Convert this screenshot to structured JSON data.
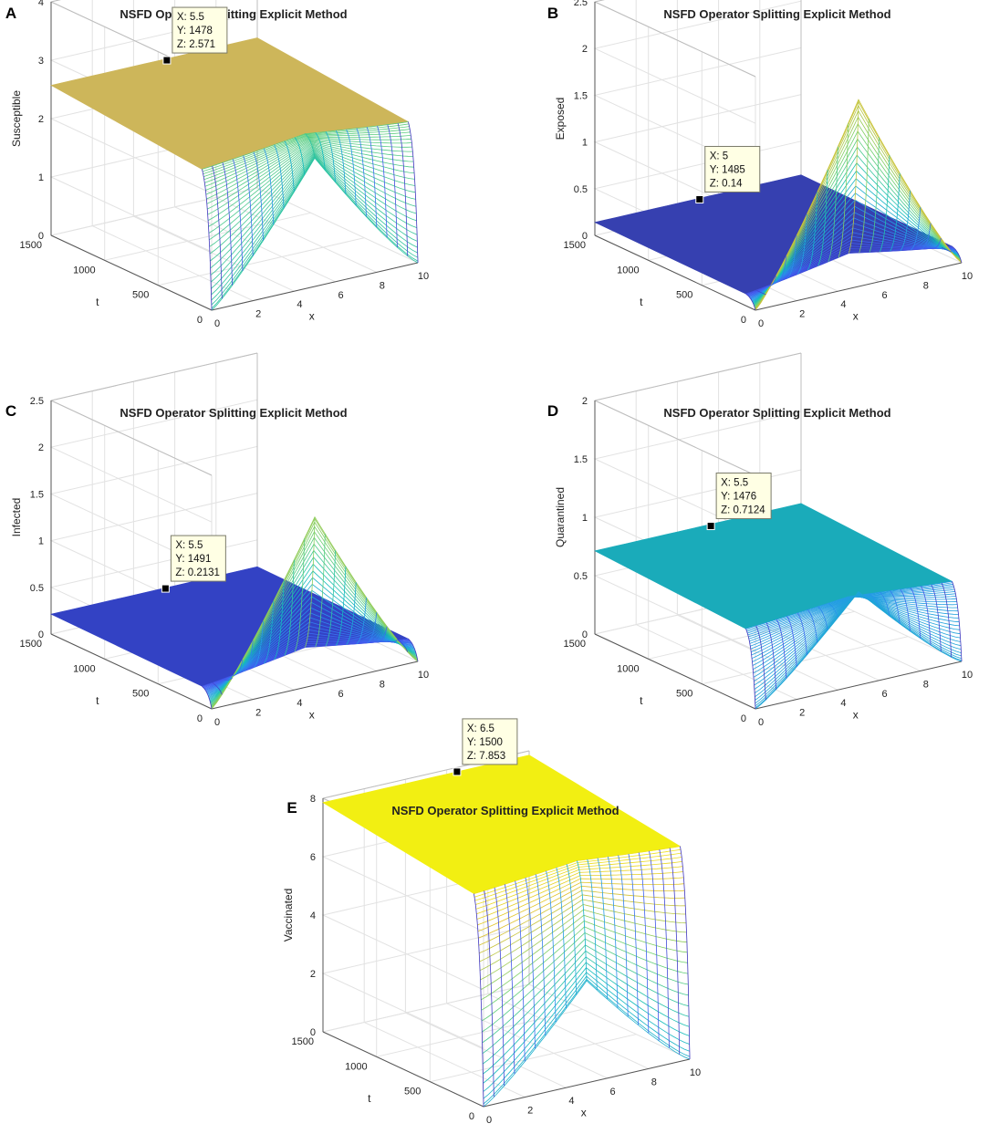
{
  "figure_title": "NSFD Operator Splitting Explicit Method",
  "chart_data": [
    {
      "panel": "A",
      "type": "surface",
      "title": "NSFD Operator Splitting Explicit Method",
      "xlabel": "x",
      "ylabel": "t",
      "zlabel": "Susceptible",
      "xlim": [
        0,
        10
      ],
      "ylim": [
        0,
        1500
      ],
      "zlim": [
        0,
        4
      ],
      "x_ticks": [
        "0",
        "2",
        "4",
        "6",
        "8",
        "10"
      ],
      "y_ticks": [
        "0",
        "500",
        "1000",
        "1500"
      ],
      "z_ticks": [
        "0",
        "1",
        "2",
        "3",
        "4"
      ],
      "surface_color": "#cdb65a",
      "profile": {
        "plateau": 2.571,
        "t0_center": 2.2,
        "t0_edge": 0.0,
        "edge_value": 2.1
      },
      "datatip": {
        "x_label": "X: 5.5",
        "y_label": "Y: 1478",
        "z_label": "Z: 2.571",
        "x": 5.5,
        "y": 1478,
        "z": 2.571
      }
    },
    {
      "panel": "B",
      "type": "surface",
      "title": "NSFD Operator Splitting Explicit Method",
      "xlabel": "x",
      "ylabel": "t",
      "zlabel": "Exposed",
      "xlim": [
        0,
        10
      ],
      "ylim": [
        0,
        1500
      ],
      "zlim": [
        0,
        2.5
      ],
      "x_ticks": [
        "0",
        "2",
        "4",
        "6",
        "8",
        "10"
      ],
      "y_ticks": [
        "0",
        "500",
        "1000",
        "1500"
      ],
      "z_ticks": [
        "0",
        "0.5",
        "1",
        "1.5",
        "2",
        "2.5"
      ],
      "surface_color": "#3640b0",
      "profile": {
        "plateau": 0.14,
        "t0_center": 2.0,
        "t0_edge": 0.0,
        "edge_value": 0.12
      },
      "datatip": {
        "x_label": "X: 5",
        "y_label": "Y: 1485",
        "z_label": "Z: 0.14",
        "x": 5,
        "y": 1485,
        "z": 0.14
      }
    },
    {
      "panel": "C",
      "type": "surface",
      "title": "NSFD Operator Splitting Explicit Method",
      "xlabel": "x",
      "ylabel": "t",
      "zlabel": "Infected",
      "xlim": [
        0,
        10
      ],
      "ylim": [
        0,
        1500
      ],
      "zlim": [
        0,
        2.5
      ],
      "x_ticks": [
        "0",
        "2",
        "4",
        "6",
        "8",
        "10"
      ],
      "y_ticks": [
        "0",
        "500",
        "1000",
        "1500"
      ],
      "z_ticks": [
        "0",
        "0.5",
        "1",
        "1.5",
        "2",
        "2.5"
      ],
      "surface_color": "#3342c4",
      "profile": {
        "plateau": 0.2131,
        "t0_center": 1.8,
        "t0_edge": 0.0,
        "edge_value": 0.19
      },
      "datatip": {
        "x_label": "X: 5.5",
        "y_label": "Y: 1491",
        "z_label": "Z: 0.2131",
        "x": 5.5,
        "y": 1491,
        "z": 0.2131
      }
    },
    {
      "panel": "D",
      "type": "surface",
      "title": "NSFD Operator Splitting Explicit Method",
      "xlabel": "x",
      "ylabel": "t",
      "zlabel": "Quarantined",
      "xlim": [
        0,
        10
      ],
      "ylim": [
        0,
        1500
      ],
      "zlim": [
        0,
        2
      ],
      "x_ticks": [
        "0",
        "2",
        "4",
        "6",
        "8",
        "10"
      ],
      "y_ticks": [
        "0",
        "500",
        "1000",
        "1500"
      ],
      "z_ticks": [
        "0",
        "0.5",
        "1",
        "1.5",
        "2"
      ],
      "surface_color": "#1aabba",
      "profile": {
        "plateau": 0.7124,
        "t0_center": 0.8,
        "t0_edge": 0.0,
        "edge_value": 0.66
      },
      "datatip": {
        "x_label": "X: 5.5",
        "y_label": "Y: 1476",
        "z_label": "Z: 0.7124",
        "x": 5.5,
        "y": 1476,
        "z": 0.7124
      }
    },
    {
      "panel": "E",
      "type": "surface",
      "title": "NSFD Operator Splitting Explicit Method",
      "xlabel": "x",
      "ylabel": "t",
      "zlabel": "Vaccinated",
      "xlim": [
        0,
        10
      ],
      "ylim": [
        0,
        1500
      ],
      "zlim": [
        0,
        8
      ],
      "x_ticks": [
        "0",
        "2",
        "4",
        "6",
        "8",
        "10"
      ],
      "y_ticks": [
        "0",
        "500",
        "1000",
        "1500"
      ],
      "z_ticks": [
        "0",
        "2",
        "4",
        "6",
        "8"
      ],
      "surface_color": "#f2ef12",
      "profile": {
        "plateau": 7.853,
        "t0_center": 3.5,
        "t0_edge": 0.0,
        "edge_value": 7.85
      },
      "datatip": {
        "x_label": "X: 6.5",
        "y_label": "Y: 1500",
        "z_label": "Z: 7.853",
        "x": 6.5,
        "y": 1500,
        "z": 7.853
      }
    }
  ]
}
